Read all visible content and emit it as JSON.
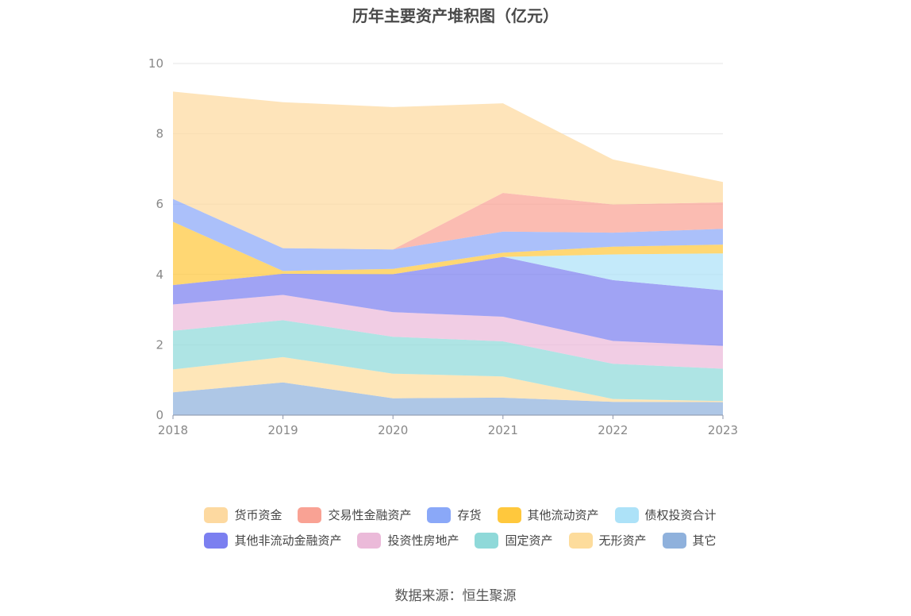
{
  "chart_data": {
    "type": "area",
    "stacked": true,
    "title": "历年主要资产堆积图（亿元）",
    "categories": [
      "2018",
      "2019",
      "2020",
      "2021",
      "2022",
      "2023"
    ],
    "ylim": [
      0,
      10
    ],
    "yticks": [
      "0",
      "2",
      "4",
      "6",
      "8",
      "10"
    ],
    "grid": true,
    "legend_position": "bottom",
    "series": [
      {
        "name": "其它",
        "color": "#8fb1dc",
        "values": [
          0.65,
          0.93,
          0.48,
          0.5,
          0.38,
          0.37
        ]
      },
      {
        "name": "无形资产",
        "color": "#fddc9c",
        "values": [
          0.65,
          0.72,
          0.7,
          0.6,
          0.08,
          0.03
        ]
      },
      {
        "name": "固定资产",
        "color": "#8fd9d9",
        "values": [
          1.1,
          1.05,
          1.05,
          1.0,
          1.0,
          0.92
        ]
      },
      {
        "name": "投资性房地产",
        "color": "#ebbad9",
        "values": [
          0.75,
          0.72,
          0.7,
          0.7,
          0.65,
          0.65
        ]
      },
      {
        "name": "其他非流动金融资产",
        "color": "#7b7ff0",
        "values": [
          0.55,
          0.6,
          1.08,
          1.7,
          1.73,
          1.58
        ]
      },
      {
        "name": "债权投资合计",
        "color": "#ade2f8",
        "values": [
          0.0,
          0.0,
          0.0,
          0.0,
          0.73,
          1.05
        ]
      },
      {
        "name": "其他流动资产",
        "color": "#ffc83d",
        "values": [
          1.8,
          0.08,
          0.15,
          0.12,
          0.22,
          0.25
        ]
      },
      {
        "name": "存货",
        "color": "#8aa8f8",
        "values": [
          0.65,
          0.65,
          0.55,
          0.6,
          0.4,
          0.45
        ]
      },
      {
        "name": "交易性金融资产",
        "color": "#f9a294",
        "values": [
          0.0,
          0.0,
          0.0,
          1.1,
          0.8,
          0.75
        ]
      },
      {
        "name": "货币资金",
        "color": "#fdd9a0",
        "values": [
          3.05,
          4.15,
          4.05,
          2.55,
          1.28,
          0.58
        ]
      }
    ]
  },
  "legend": {
    "row1": [
      {
        "name": "货币资金",
        "color": "#fdd9a0"
      },
      {
        "name": "交易性金融资产",
        "color": "#f9a294"
      },
      {
        "name": "存货",
        "color": "#8aa8f8"
      },
      {
        "name": "其他流动资产",
        "color": "#ffc83d"
      },
      {
        "name": "债权投资合计",
        "color": "#ade2f8"
      }
    ],
    "row2": [
      {
        "name": "其他非流动金融资产",
        "color": "#7b7ff0"
      },
      {
        "name": "投资性房地产",
        "color": "#ebbad9"
      },
      {
        "name": "固定资产",
        "color": "#8fd9d9"
      },
      {
        "name": "无形资产",
        "color": "#fddc9c"
      },
      {
        "name": "其它",
        "color": "#8fb1dc"
      }
    ]
  },
  "source": "数据来源：恒生聚源"
}
